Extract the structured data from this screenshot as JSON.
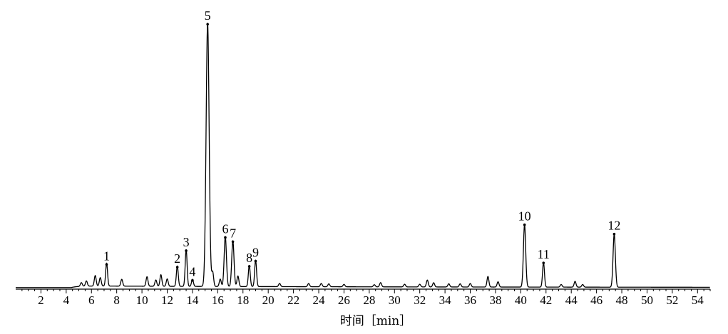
{
  "chart_data": {
    "type": "line",
    "title": "",
    "xlabel": "时间［min］",
    "ylabel": "",
    "xlim": [
      0,
      55
    ],
    "ylim": [
      0,
      100
    ],
    "x_ticks": [
      2,
      4,
      6,
      8,
      10,
      12,
      14,
      16,
      18,
      20,
      22,
      24,
      26,
      28,
      30,
      32,
      34,
      36,
      38,
      40,
      42,
      44,
      46,
      48,
      50,
      52,
      54
    ],
    "grid": false,
    "legend": "none",
    "line_color": "#000000",
    "baseline": 0.6,
    "peaks": [
      {
        "label": "1",
        "x": 7.2,
        "y": 9.3
      },
      {
        "label": "2",
        "x": 12.8,
        "y": 8.3
      },
      {
        "label": "3",
        "x": 13.5,
        "y": 14.5
      },
      {
        "label": "4",
        "x": 14.0,
        "y": 3.3
      },
      {
        "label": "5",
        "x": 15.2,
        "y": 100
      },
      {
        "label": "6",
        "x": 16.6,
        "y": 19.5
      },
      {
        "label": "7",
        "x": 17.2,
        "y": 17.9
      },
      {
        "label": "8",
        "x": 18.5,
        "y": 8.6
      },
      {
        "label": "9",
        "x": 19.0,
        "y": 10.6
      },
      {
        "label": "10",
        "x": 40.3,
        "y": 24.3
      },
      {
        "label": "11",
        "x": 41.8,
        "y": 9.9
      },
      {
        "label": "12",
        "x": 47.4,
        "y": 20.8
      }
    ],
    "minor_peaks": [
      {
        "x": 5.2,
        "y": 2.0
      },
      {
        "x": 5.6,
        "y": 2.6
      },
      {
        "x": 6.3,
        "y": 4.6
      },
      {
        "x": 6.7,
        "y": 3.8
      },
      {
        "x": 8.4,
        "y": 3.2
      },
      {
        "x": 10.4,
        "y": 4.2
      },
      {
        "x": 11.1,
        "y": 3.0
      },
      {
        "x": 11.5,
        "y": 5.0
      },
      {
        "x": 12.0,
        "y": 3.4
      },
      {
        "x": 15.6,
        "y": 6.0
      },
      {
        "x": 16.2,
        "y": 3.4
      },
      {
        "x": 17.6,
        "y": 4.6
      },
      {
        "x": 20.9,
        "y": 1.8
      },
      {
        "x": 23.2,
        "y": 1.8
      },
      {
        "x": 24.2,
        "y": 1.8
      },
      {
        "x": 24.8,
        "y": 1.7
      },
      {
        "x": 26.0,
        "y": 1.5
      },
      {
        "x": 28.4,
        "y": 1.4
      },
      {
        "x": 28.9,
        "y": 2.2
      },
      {
        "x": 30.8,
        "y": 1.6
      },
      {
        "x": 32.0,
        "y": 1.6
      },
      {
        "x": 32.6,
        "y": 3.2
      },
      {
        "x": 33.1,
        "y": 2.2
      },
      {
        "x": 34.3,
        "y": 1.8
      },
      {
        "x": 35.2,
        "y": 1.8
      },
      {
        "x": 36.0,
        "y": 1.9
      },
      {
        "x": 37.4,
        "y": 4.6
      },
      {
        "x": 38.2,
        "y": 2.6
      },
      {
        "x": 43.2,
        "y": 1.6
      },
      {
        "x": 44.3,
        "y": 2.8
      },
      {
        "x": 44.9,
        "y": 1.6
      }
    ]
  }
}
